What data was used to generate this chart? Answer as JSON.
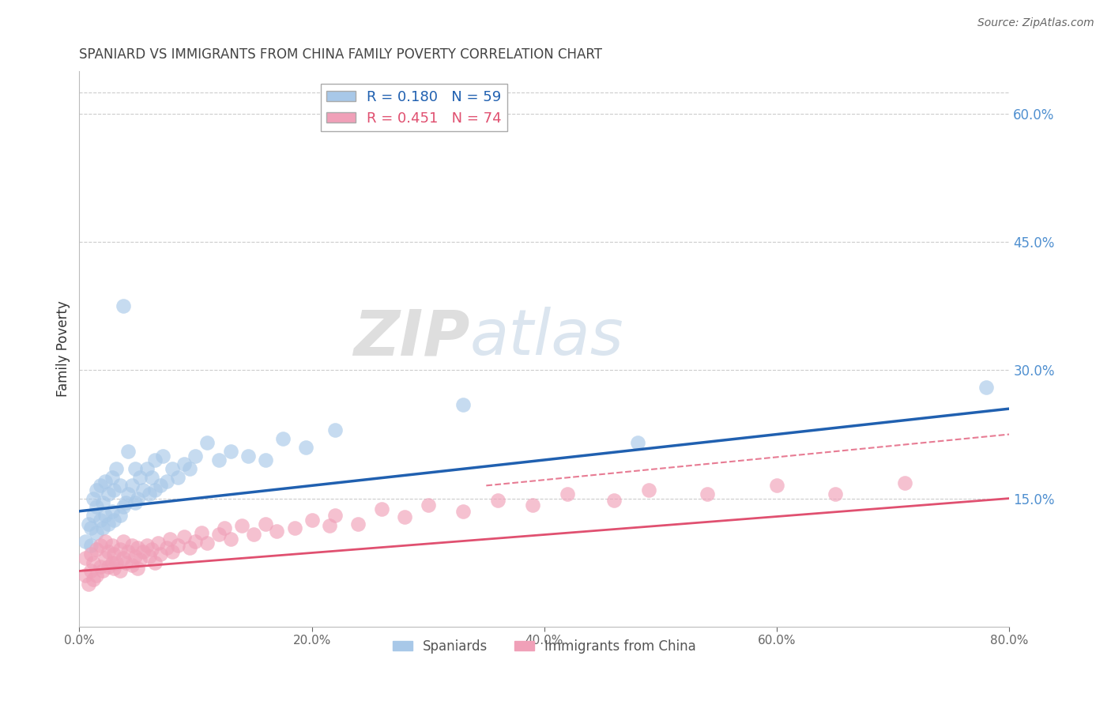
{
  "title": "SPANIARD VS IMMIGRANTS FROM CHINA FAMILY POVERTY CORRELATION CHART",
  "source": "Source: ZipAtlas.com",
  "ylabel": "Family Poverty",
  "watermark_zip": "ZIP",
  "watermark_atlas": "atlas",
  "legend_label1": "Spaniards",
  "legend_label2": "Immigrants from China",
  "R1": 0.18,
  "N1": 59,
  "R2": 0.451,
  "N2": 74,
  "xlim": [
    0,
    0.8
  ],
  "ylim": [
    0,
    0.65
  ],
  "xticks": [
    0.0,
    0.2,
    0.4,
    0.6,
    0.8
  ],
  "yticks_right": [
    0.15,
    0.3,
    0.45,
    0.6
  ],
  "color_blue": "#A8C8E8",
  "color_pink": "#F0A0B8",
  "line_blue": "#2060B0",
  "line_pink": "#E05070",
  "background": "#FFFFFF",
  "grid_color": "#CCCCCC",
  "right_axis_color": "#5090D0",
  "blue_line_start_y": 0.135,
  "blue_line_end_y": 0.255,
  "pink_line_start_y": 0.065,
  "pink_line_end_y": 0.15,
  "dash_line_start_y": 0.135,
  "dash_line_end_y": 0.225,
  "spaniards_x": [
    0.005,
    0.008,
    0.01,
    0.01,
    0.012,
    0.012,
    0.015,
    0.015,
    0.015,
    0.018,
    0.018,
    0.02,
    0.02,
    0.022,
    0.022,
    0.025,
    0.025,
    0.028,
    0.028,
    0.03,
    0.03,
    0.032,
    0.035,
    0.035,
    0.038,
    0.038,
    0.04,
    0.042,
    0.042,
    0.045,
    0.048,
    0.048,
    0.05,
    0.052,
    0.055,
    0.058,
    0.06,
    0.062,
    0.065,
    0.065,
    0.07,
    0.072,
    0.075,
    0.08,
    0.085,
    0.09,
    0.095,
    0.1,
    0.11,
    0.12,
    0.13,
    0.145,
    0.16,
    0.175,
    0.195,
    0.22,
    0.33,
    0.48,
    0.78
  ],
  "spaniards_y": [
    0.1,
    0.12,
    0.095,
    0.115,
    0.13,
    0.15,
    0.11,
    0.14,
    0.16,
    0.125,
    0.165,
    0.115,
    0.145,
    0.13,
    0.17,
    0.12,
    0.155,
    0.135,
    0.175,
    0.125,
    0.16,
    0.185,
    0.13,
    0.165,
    0.14,
    0.375,
    0.145,
    0.155,
    0.205,
    0.165,
    0.145,
    0.185,
    0.15,
    0.175,
    0.16,
    0.185,
    0.155,
    0.175,
    0.16,
    0.195,
    0.165,
    0.2,
    0.17,
    0.185,
    0.175,
    0.19,
    0.185,
    0.2,
    0.215,
    0.195,
    0.205,
    0.2,
    0.195,
    0.22,
    0.21,
    0.23,
    0.26,
    0.215,
    0.28
  ],
  "china_x": [
    0.005,
    0.005,
    0.008,
    0.01,
    0.01,
    0.012,
    0.012,
    0.015,
    0.015,
    0.018,
    0.018,
    0.02,
    0.022,
    0.022,
    0.025,
    0.025,
    0.028,
    0.028,
    0.03,
    0.03,
    0.032,
    0.035,
    0.035,
    0.038,
    0.038,
    0.04,
    0.042,
    0.045,
    0.045,
    0.048,
    0.05,
    0.05,
    0.052,
    0.055,
    0.058,
    0.06,
    0.062,
    0.065,
    0.068,
    0.07,
    0.075,
    0.078,
    0.08,
    0.085,
    0.09,
    0.095,
    0.1,
    0.105,
    0.11,
    0.12,
    0.125,
    0.13,
    0.14,
    0.15,
    0.16,
    0.17,
    0.185,
    0.2,
    0.215,
    0.22,
    0.24,
    0.26,
    0.28,
    0.3,
    0.33,
    0.36,
    0.39,
    0.42,
    0.46,
    0.49,
    0.54,
    0.6,
    0.65,
    0.71
  ],
  "china_y": [
    0.06,
    0.08,
    0.05,
    0.065,
    0.085,
    0.055,
    0.075,
    0.06,
    0.09,
    0.07,
    0.095,
    0.065,
    0.08,
    0.1,
    0.07,
    0.088,
    0.075,
    0.095,
    0.068,
    0.085,
    0.075,
    0.065,
    0.09,
    0.08,
    0.1,
    0.075,
    0.088,
    0.072,
    0.095,
    0.082,
    0.068,
    0.092,
    0.078,
    0.088,
    0.095,
    0.082,
    0.09,
    0.075,
    0.098,
    0.085,
    0.092,
    0.102,
    0.088,
    0.095,
    0.105,
    0.092,
    0.1,
    0.11,
    0.098,
    0.108,
    0.115,
    0.102,
    0.118,
    0.108,
    0.12,
    0.112,
    0.115,
    0.125,
    0.118,
    0.13,
    0.12,
    0.138,
    0.128,
    0.142,
    0.135,
    0.148,
    0.142,
    0.155,
    0.148,
    0.16,
    0.155,
    0.165,
    0.155,
    0.168
  ]
}
